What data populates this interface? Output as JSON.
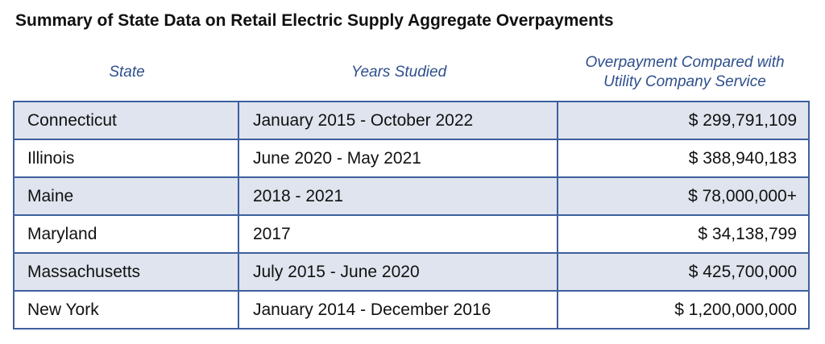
{
  "title": "Summary of State Data on Retail Electric Supply Aggregate Overpayments",
  "columns": {
    "state": "State",
    "years": "Years Studied",
    "overpayment_line1": "Overpayment Compared with",
    "overpayment_line2": "Utility Company Service"
  },
  "rows": [
    {
      "state": "Connecticut",
      "years": "January 2015 - October 2022",
      "overpayment": "$ 299,791,109"
    },
    {
      "state": "Illinois",
      "years": "June 2020 - May 2021",
      "overpayment": "$ 388,940,183"
    },
    {
      "state": "Maine",
      "years": "2018 - 2021",
      "overpayment": "$ 78,000,000+"
    },
    {
      "state": "Maryland",
      "years": "2017",
      "overpayment": "$ 34,138,799"
    },
    {
      "state": "Massachusetts",
      "years": "July 2015 - June 2020",
      "overpayment": "$ 425,700,000"
    },
    {
      "state": "New York",
      "years": "January 2014 - December 2016",
      "overpayment": "$ 1,200,000,000"
    }
  ],
  "colors": {
    "header_text": "#2e4f8c",
    "border": "#3e5f9e",
    "row_shade": "#dfe4ee"
  }
}
